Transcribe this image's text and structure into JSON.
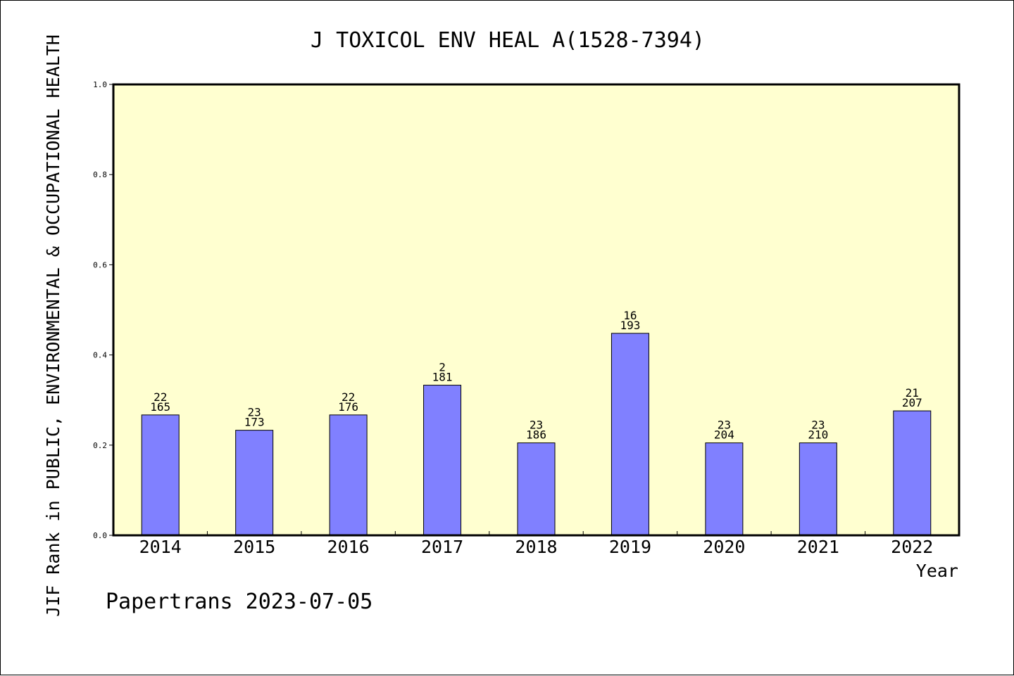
{
  "chart_data": {
    "type": "bar",
    "title": "J TOXICOL ENV HEAL A(1528-7394)",
    "ylabel": "JIF Rank in PUBLIC, ENVIRONMENTAL & OCCUPATIONAL HEALTH",
    "xlabel": "Year",
    "ylim": [
      0,
      1.0
    ],
    "yticks": [
      "0.0",
      "0.2",
      "0.4",
      "0.6",
      "0.8",
      "1.0"
    ],
    "categories": [
      "2014",
      "2015",
      "2016",
      "2017",
      "2018",
      "2019",
      "2020",
      "2021",
      "2022"
    ],
    "values": [
      0.267,
      0.233,
      0.267,
      0.333,
      0.205,
      0.448,
      0.205,
      0.205,
      0.276
    ],
    "label_top": [
      "22",
      "23",
      "22",
      "2",
      "23",
      "16",
      "23",
      "23",
      "21"
    ],
    "label_bottom": [
      "165",
      "173",
      "176",
      "181",
      "186",
      "193",
      "204",
      "210",
      "207"
    ],
    "grid": false,
    "colors": {
      "bar": "#8080ff",
      "plot_bg": "#ffffd0",
      "border": "#000000"
    }
  },
  "footer": "Papertrans 2023-07-05"
}
